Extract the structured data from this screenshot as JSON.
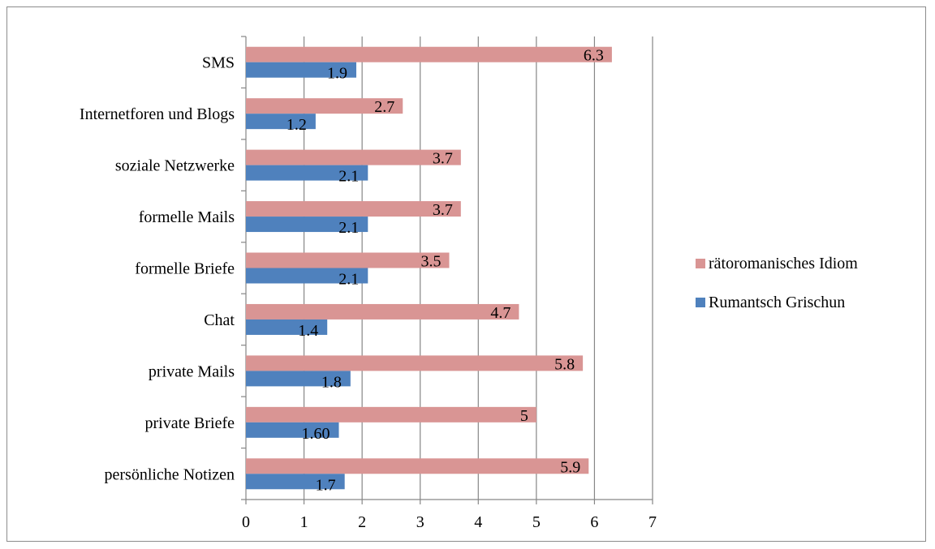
{
  "chart_data": {
    "type": "bar",
    "orientation": "horizontal",
    "categories": [
      "persönliche Notizen",
      "private Briefe",
      "private Mails",
      "Chat",
      "formelle Briefe",
      "formelle Mails",
      "soziale Netzwerke",
      "Internetforen und Blogs",
      "SMS"
    ],
    "series": [
      {
        "name": "Rumantsch Grischun",
        "color": "#4f81bd",
        "values": [
          1.7,
          1.6,
          1.8,
          1.4,
          2.1,
          2.1,
          2.1,
          1.2,
          1.9
        ],
        "labels": [
          "1.7",
          "1.60",
          "1.8",
          "1.4",
          "2.1",
          "2.1",
          "2.1",
          "1.2",
          "1.9"
        ]
      },
      {
        "name": "rätoromanisches Idiom",
        "color": "#d99594",
        "values": [
          5.9,
          5,
          5.8,
          4.7,
          3.5,
          3.7,
          3.7,
          2.7,
          6.3
        ],
        "labels": [
          "5.9",
          "5",
          "5.8",
          "4.7",
          "3.5",
          "3.7",
          "3.7",
          "2.7",
          "6.3"
        ]
      }
    ],
    "xlim": [
      0,
      7
    ],
    "xticks": [
      "0",
      "1",
      "2",
      "3",
      "4",
      "5",
      "6",
      "7"
    ],
    "grid": "vertical",
    "legend_position": "right",
    "legend_order": [
      "rätoromanisches Idiom",
      "Rumantsch Grischun"
    ],
    "title": "",
    "xlabel": "",
    "ylabel": ""
  }
}
